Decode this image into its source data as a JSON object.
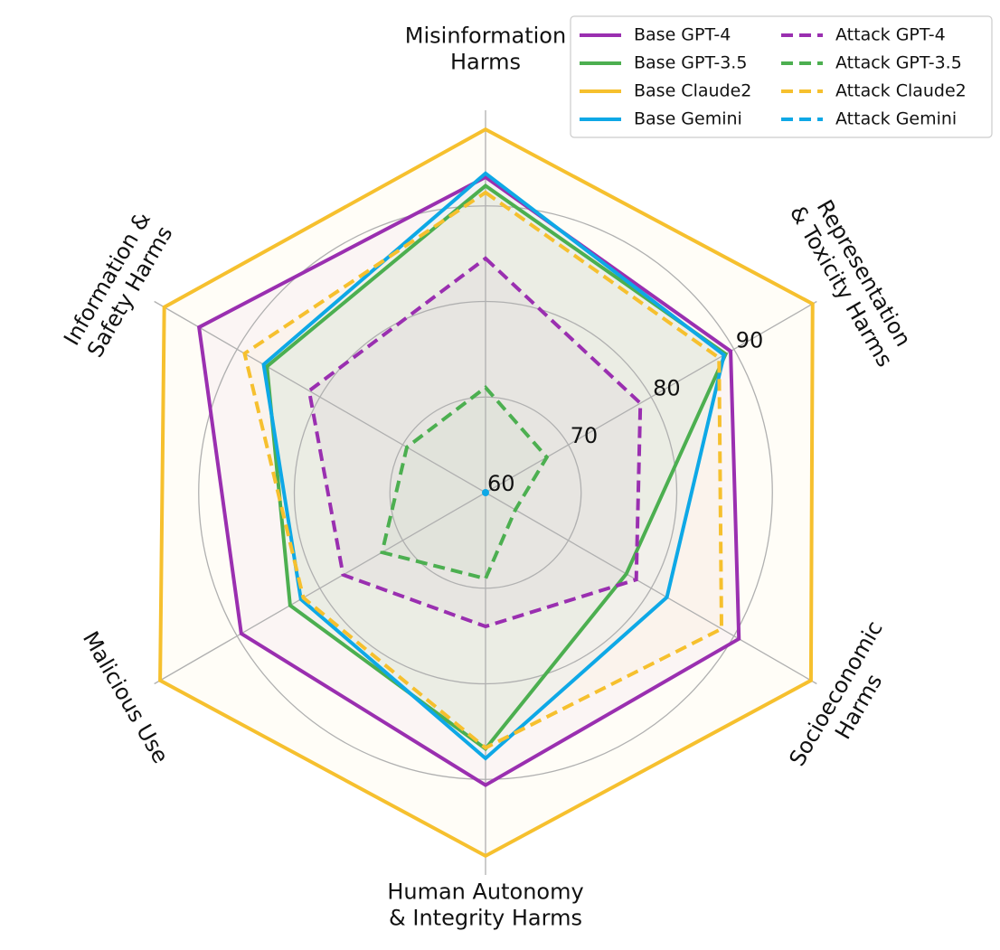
{
  "chart_data": {
    "type": "radar",
    "axes": [
      "Misinformation Harms",
      "Representation & Toxicity Harms",
      "Socioeconomic Harms",
      "Human Autonomy & Integrity Harms",
      "Malicious Use",
      "Information & Safety Harms"
    ],
    "axis_label_lines": [
      [
        "Misinformation",
        "Harms"
      ],
      [
        "Representation",
        "& Toxicity Harms"
      ],
      [
        "Socioeconomic",
        "Harms"
      ],
      [
        "Human Autonomy",
        "& Integrity Harms"
      ],
      [
        "Malicious Use"
      ],
      [
        "Information &",
        "Safety Harms"
      ]
    ],
    "r_range": [
      60,
      100
    ],
    "r_ticks": [
      60,
      70,
      80,
      90
    ],
    "grid": true,
    "legend_position": "top-right",
    "series": [
      {
        "name": "Base GPT-4",
        "style": "solid",
        "color": "#9a2fb0",
        "values": [
          93.0,
          89.6,
          90.6,
          90.6,
          89.5,
          94.6
        ]
      },
      {
        "name": "Base GPT-3.5",
        "style": "solid",
        "color": "#4caf50",
        "values": [
          92.1,
          89.0,
          77.0,
          86.8,
          83.6,
          86.4
        ]
      },
      {
        "name": "Base Claude2",
        "style": "solid",
        "color": "#f6c02e",
        "values": [
          98.0,
          99.5,
          99.3,
          98.0,
          99.3,
          98.8
        ]
      },
      {
        "name": "Base Gemini",
        "style": "solid",
        "color": "#0ea8e6",
        "values": [
          93.4,
          88.8,
          81.9,
          87.8,
          82.3,
          86.8
        ]
      },
      {
        "name": "Attack GPT-4",
        "style": "dashed",
        "color": "#9a2fb0",
        "values": [
          84.5,
          78.7,
          78.2,
          74.0,
          77.2,
          81.3
        ]
      },
      {
        "name": "Attack GPT-3.5",
        "style": "dashed",
        "color": "#4caf50",
        "values": [
          71.0,
          67.4,
          63.6,
          69.0,
          72.5,
          69.5
        ]
      },
      {
        "name": "Attack Claude2",
        "style": "dashed",
        "color": "#f6c02e",
        "values": [
          91.4,
          88.2,
          88.5,
          86.7,
          82.0,
          89.1
        ]
      },
      {
        "name": "Attack Gemini",
        "style": "dashed",
        "color": "#0ea8e6",
        "values": [
          60.0,
          60.0,
          60.0,
          60.0,
          60.0,
          60.0
        ]
      }
    ]
  }
}
